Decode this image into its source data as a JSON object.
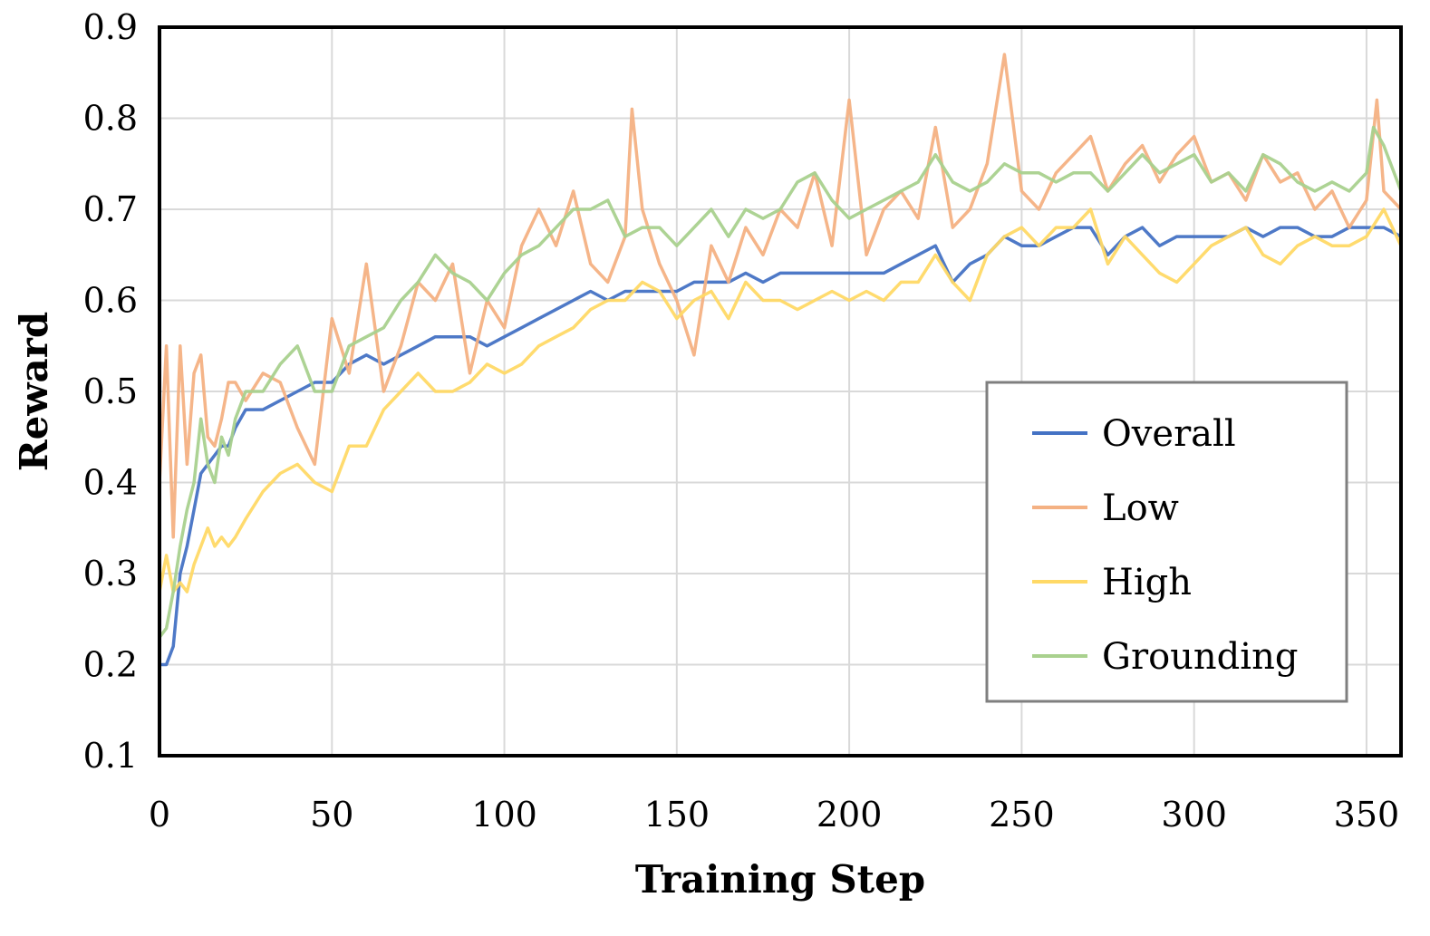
{
  "chart_data": {
    "type": "line",
    "title": "",
    "xlabel": "Training Step",
    "ylabel": "Reward",
    "xlim": [
      0,
      360
    ],
    "ylim": [
      0.1,
      0.9
    ],
    "x_ticks": [
      0,
      50,
      100,
      150,
      200,
      250,
      300,
      350
    ],
    "x_tick_labels": [
      "0",
      "50",
      "100",
      "150",
      "200",
      "250",
      "300",
      "350"
    ],
    "y_ticks": [
      0.1,
      0.2,
      0.3,
      0.4,
      0.5,
      0.6,
      0.7,
      0.8,
      0.9
    ],
    "y_tick_labels": [
      "0.1",
      "0.2",
      "0.3",
      "0.4",
      "0.5",
      "0.6",
      "0.7",
      "0.8",
      "0.9"
    ],
    "grid": true,
    "legend_position": "center-right",
    "series": [
      {
        "name": "Overall",
        "color": "#4472C4",
        "x": [
          0,
          2,
          4,
          6,
          8,
          10,
          12,
          14,
          16,
          18,
          20,
          22,
          25,
          30,
          35,
          40,
          45,
          50,
          55,
          60,
          65,
          70,
          75,
          80,
          85,
          90,
          95,
          100,
          105,
          110,
          115,
          120,
          125,
          130,
          135,
          140,
          145,
          150,
          155,
          160,
          165,
          170,
          175,
          180,
          185,
          190,
          195,
          200,
          205,
          210,
          215,
          220,
          225,
          230,
          235,
          240,
          245,
          250,
          255,
          260,
          265,
          270,
          275,
          280,
          285,
          290,
          295,
          300,
          305,
          310,
          315,
          320,
          325,
          330,
          335,
          340,
          345,
          350,
          355,
          360
        ],
        "values": [
          0.2,
          0.2,
          0.22,
          0.3,
          0.33,
          0.37,
          0.41,
          0.42,
          0.43,
          0.44,
          0.44,
          0.46,
          0.48,
          0.48,
          0.49,
          0.5,
          0.51,
          0.51,
          0.53,
          0.54,
          0.53,
          0.54,
          0.55,
          0.56,
          0.56,
          0.56,
          0.55,
          0.56,
          0.57,
          0.58,
          0.59,
          0.6,
          0.61,
          0.6,
          0.61,
          0.61,
          0.61,
          0.61,
          0.62,
          0.62,
          0.62,
          0.63,
          0.62,
          0.63,
          0.63,
          0.63,
          0.63,
          0.63,
          0.63,
          0.63,
          0.64,
          0.65,
          0.66,
          0.62,
          0.64,
          0.65,
          0.67,
          0.66,
          0.66,
          0.67,
          0.68,
          0.68,
          0.65,
          0.67,
          0.68,
          0.66,
          0.67,
          0.67,
          0.67,
          0.67,
          0.68,
          0.67,
          0.68,
          0.68,
          0.67,
          0.67,
          0.68,
          0.68,
          0.68,
          0.67
        ]
      },
      {
        "name": "Low",
        "color": "#F4B183",
        "x": [
          0,
          2,
          4,
          6,
          8,
          10,
          12,
          14,
          16,
          18,
          20,
          22,
          25,
          30,
          35,
          40,
          45,
          50,
          55,
          60,
          65,
          70,
          75,
          80,
          85,
          90,
          95,
          100,
          105,
          110,
          115,
          120,
          125,
          130,
          135,
          137,
          140,
          145,
          150,
          155,
          160,
          165,
          170,
          175,
          180,
          185,
          190,
          195,
          200,
          205,
          210,
          215,
          220,
          225,
          230,
          235,
          240,
          245,
          250,
          255,
          260,
          265,
          270,
          275,
          280,
          285,
          290,
          295,
          300,
          305,
          310,
          315,
          320,
          325,
          330,
          335,
          340,
          345,
          350,
          353,
          355,
          360
        ],
        "values": [
          0.4,
          0.55,
          0.34,
          0.55,
          0.42,
          0.52,
          0.54,
          0.45,
          0.44,
          0.47,
          0.51,
          0.51,
          0.49,
          0.52,
          0.51,
          0.46,
          0.42,
          0.58,
          0.52,
          0.64,
          0.5,
          0.55,
          0.62,
          0.6,
          0.64,
          0.52,
          0.6,
          0.57,
          0.66,
          0.7,
          0.66,
          0.72,
          0.64,
          0.62,
          0.67,
          0.81,
          0.7,
          0.64,
          0.6,
          0.54,
          0.66,
          0.62,
          0.68,
          0.65,
          0.7,
          0.68,
          0.74,
          0.66,
          0.82,
          0.65,
          0.7,
          0.72,
          0.69,
          0.79,
          0.68,
          0.7,
          0.75,
          0.87,
          0.72,
          0.7,
          0.74,
          0.76,
          0.78,
          0.72,
          0.75,
          0.77,
          0.73,
          0.76,
          0.78,
          0.73,
          0.74,
          0.71,
          0.76,
          0.73,
          0.74,
          0.7,
          0.72,
          0.68,
          0.71,
          0.82,
          0.72,
          0.7
        ]
      },
      {
        "name": "High",
        "color": "#FFD966",
        "x": [
          0,
          2,
          4,
          6,
          8,
          10,
          12,
          14,
          16,
          18,
          20,
          22,
          25,
          30,
          35,
          40,
          45,
          50,
          55,
          60,
          65,
          70,
          75,
          80,
          85,
          90,
          95,
          100,
          105,
          110,
          115,
          120,
          125,
          130,
          135,
          140,
          145,
          150,
          155,
          160,
          165,
          170,
          175,
          180,
          185,
          190,
          195,
          200,
          205,
          210,
          215,
          220,
          225,
          230,
          235,
          240,
          245,
          250,
          255,
          260,
          265,
          270,
          275,
          280,
          285,
          290,
          295,
          300,
          305,
          310,
          315,
          320,
          325,
          330,
          335,
          340,
          345,
          350,
          355,
          360
        ],
        "values": [
          0.28,
          0.32,
          0.28,
          0.29,
          0.28,
          0.31,
          0.33,
          0.35,
          0.33,
          0.34,
          0.33,
          0.34,
          0.36,
          0.39,
          0.41,
          0.42,
          0.4,
          0.39,
          0.44,
          0.44,
          0.48,
          0.5,
          0.52,
          0.5,
          0.5,
          0.51,
          0.53,
          0.52,
          0.53,
          0.55,
          0.56,
          0.57,
          0.59,
          0.6,
          0.6,
          0.62,
          0.61,
          0.58,
          0.6,
          0.61,
          0.58,
          0.62,
          0.6,
          0.6,
          0.59,
          0.6,
          0.61,
          0.6,
          0.61,
          0.6,
          0.62,
          0.62,
          0.65,
          0.62,
          0.6,
          0.65,
          0.67,
          0.68,
          0.66,
          0.68,
          0.68,
          0.7,
          0.64,
          0.67,
          0.65,
          0.63,
          0.62,
          0.64,
          0.66,
          0.67,
          0.68,
          0.65,
          0.64,
          0.66,
          0.67,
          0.66,
          0.66,
          0.67,
          0.7,
          0.66
        ]
      },
      {
        "name": "Grounding",
        "color": "#A9D18E",
        "x": [
          0,
          2,
          4,
          6,
          8,
          10,
          12,
          14,
          16,
          18,
          20,
          22,
          25,
          30,
          35,
          40,
          45,
          50,
          55,
          60,
          65,
          70,
          75,
          80,
          85,
          90,
          95,
          100,
          105,
          110,
          115,
          120,
          125,
          130,
          135,
          140,
          145,
          150,
          155,
          160,
          165,
          170,
          175,
          180,
          185,
          190,
          195,
          200,
          205,
          210,
          215,
          220,
          225,
          230,
          235,
          240,
          245,
          250,
          255,
          260,
          265,
          270,
          275,
          280,
          285,
          290,
          295,
          300,
          305,
          310,
          315,
          320,
          325,
          330,
          335,
          340,
          345,
          350,
          352,
          355,
          360
        ],
        "values": [
          0.23,
          0.24,
          0.28,
          0.33,
          0.37,
          0.4,
          0.47,
          0.42,
          0.4,
          0.45,
          0.43,
          0.47,
          0.5,
          0.5,
          0.53,
          0.55,
          0.5,
          0.5,
          0.55,
          0.56,
          0.57,
          0.6,
          0.62,
          0.65,
          0.63,
          0.62,
          0.6,
          0.63,
          0.65,
          0.66,
          0.68,
          0.7,
          0.7,
          0.71,
          0.67,
          0.68,
          0.68,
          0.66,
          0.68,
          0.7,
          0.67,
          0.7,
          0.69,
          0.7,
          0.73,
          0.74,
          0.71,
          0.69,
          0.7,
          0.71,
          0.72,
          0.73,
          0.76,
          0.73,
          0.72,
          0.73,
          0.75,
          0.74,
          0.74,
          0.73,
          0.74,
          0.74,
          0.72,
          0.74,
          0.76,
          0.74,
          0.75,
          0.76,
          0.73,
          0.74,
          0.72,
          0.76,
          0.75,
          0.73,
          0.72,
          0.73,
          0.72,
          0.74,
          0.79,
          0.77,
          0.72
        ]
      }
    ]
  }
}
